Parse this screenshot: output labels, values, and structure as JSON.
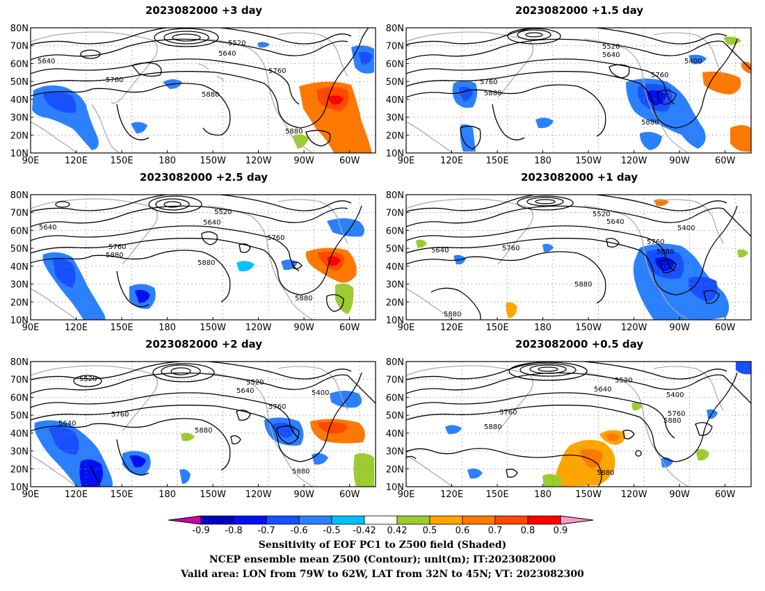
{
  "panels": [
    {
      "title": "2023082000 +3 day"
    },
    {
      "title": "2023082000 +1.5 day"
    },
    {
      "title": "2023082000 +2.5 day"
    },
    {
      "title": "2023082000 +1 day"
    },
    {
      "title": "2023082000 +2 day"
    },
    {
      "title": "2023082000 +0.5 day"
    }
  ],
  "axes": {
    "lat_labels": [
      "80N",
      "70N",
      "60N",
      "50N",
      "40N",
      "30N",
      "20N",
      "10N"
    ],
    "lon_labels": [
      "90E",
      "120E",
      "150E",
      "180",
      "150W",
      "120W",
      "90W",
      "60W"
    ]
  },
  "contour_labels": {
    "p0": [
      "5520",
      "5640",
      "5640",
      "5760",
      "5760",
      "5880",
      "5880"
    ],
    "p1": [
      "5520",
      "5640",
      "5400",
      "5760",
      "5760",
      "5880",
      "5880"
    ],
    "p2": [
      "5520",
      "5640",
      "5640",
      "5760",
      "5760",
      "5880",
      "5880",
      "5880"
    ],
    "p3": [
      "5520",
      "5640",
      "5400",
      "5640",
      "5760",
      "5760",
      "5880",
      "5880",
      "5880"
    ],
    "p4": [
      "5520",
      "5520",
      "5640",
      "5400",
      "5640",
      "5760",
      "5760",
      "5880",
      "5880"
    ],
    "p5": [
      "5520",
      "5640",
      "5400",
      "5760",
      "5760",
      "5880",
      "5880",
      "5880"
    ]
  },
  "colorbar": {
    "labels": [
      "-0.9",
      "-0.8",
      "-0.7",
      "-0.6",
      "-0.5",
      "-0.42",
      "0.42",
      "0.5",
      "0.6",
      "0.7",
      "0.8",
      "0.9"
    ],
    "colors": [
      "#0000bf",
      "#0010f0",
      "#1850ff",
      "#2a80ff",
      "#00c0ff",
      "#ffffff",
      "#9ccc30",
      "#ffa500",
      "#ff7800",
      "#ff4800",
      "#ff0000"
    ],
    "under_color": "#cc00aa",
    "over_color": "#ff99cc"
  },
  "caption": {
    "line1": "Sensitivity of EOF PC1 to Z500 field (Shaded)",
    "line2": "NCEP ensemble mean Z500 (Contour); unit(m); IT:2023082000",
    "line3": "Valid area: LON from 79W to 62W, LAT from 32N to 45N; VT: 2023082300"
  }
}
